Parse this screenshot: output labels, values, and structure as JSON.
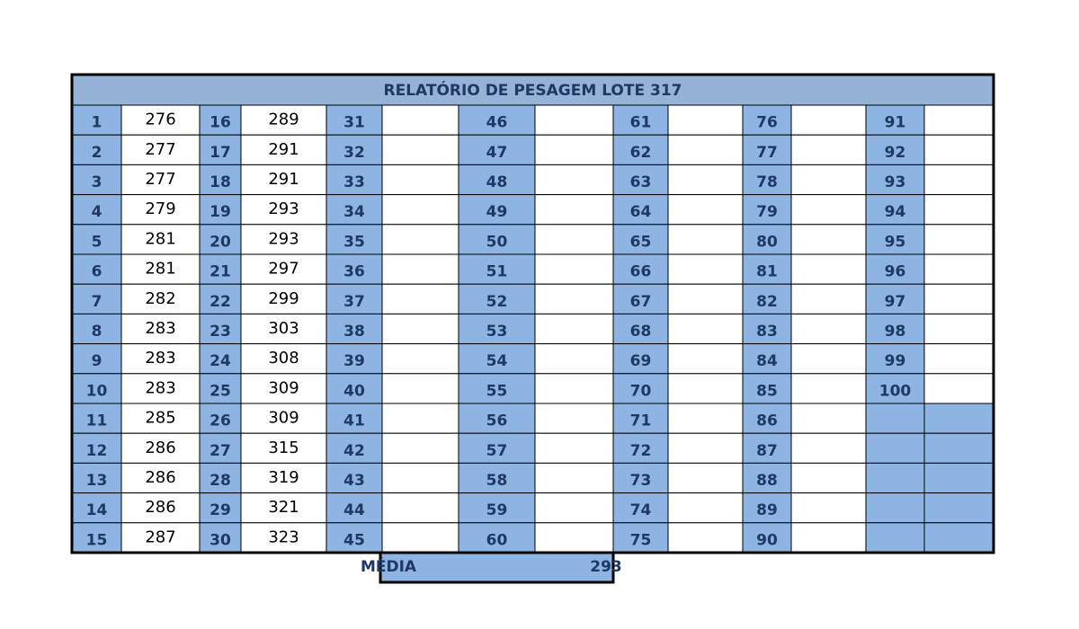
{
  "table": {
    "title": "RELATÓRIO DE PESAGEM LOTE 317",
    "groups": [
      {
        "ids": [
          1,
          2,
          3,
          4,
          5,
          6,
          7,
          8,
          9,
          10,
          11,
          12,
          13,
          14,
          15
        ],
        "values": [
          276,
          277,
          277,
          279,
          281,
          281,
          282,
          283,
          283,
          283,
          285,
          286,
          286,
          286,
          287
        ]
      },
      {
        "ids": [
          16,
          17,
          18,
          19,
          20,
          21,
          22,
          23,
          24,
          25,
          26,
          27,
          28,
          29,
          30
        ],
        "values": [
          289,
          291,
          291,
          293,
          293,
          297,
          299,
          303,
          308,
          309,
          309,
          315,
          319,
          321,
          323
        ]
      },
      {
        "ids": [
          31,
          32,
          33,
          34,
          35,
          36,
          37,
          38,
          39,
          40,
          41,
          42,
          43,
          44,
          45
        ]
      },
      {
        "ids": [
          46,
          47,
          48,
          49,
          50,
          51,
          52,
          53,
          54,
          55,
          56,
          57,
          58,
          59,
          60
        ]
      },
      {
        "ids": [
          61,
          62,
          63,
          64,
          65,
          66,
          67,
          68,
          69,
          70,
          71,
          72,
          73,
          74,
          75
        ]
      },
      {
        "ids": [
          76,
          77,
          78,
          79,
          80,
          81,
          82,
          83,
          84,
          85,
          86,
          87,
          88,
          89,
          90
        ]
      },
      {
        "ids": [
          91,
          92,
          93,
          94,
          95,
          96,
          97,
          98,
          99,
          100
        ]
      }
    ],
    "footer": {
      "label": "MÉDIA",
      "value": 293
    }
  }
}
